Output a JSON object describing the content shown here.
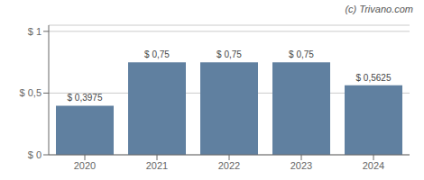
{
  "chart_data": {
    "type": "bar",
    "categories": [
      "2020",
      "2021",
      "2022",
      "2023",
      "2024"
    ],
    "values": [
      0.3975,
      0.75,
      0.75,
      0.75,
      0.5625
    ],
    "value_labels": [
      "$ 0,3975",
      "$ 0,75",
      "$ 0,75",
      "$ 0,75",
      "$ 0,5625"
    ],
    "data_labels": true,
    "color": "#6080a0",
    "ylim": [
      0,
      1.05
    ],
    "yticks": [
      {
        "value": 0,
        "label": "$ 0"
      },
      {
        "value": 0.5,
        "label": "$ 0,5"
      },
      {
        "value": 1.0,
        "label": "$ 1"
      }
    ],
    "grid": true,
    "annotations": [
      "(c) Trivano.com"
    ]
  }
}
